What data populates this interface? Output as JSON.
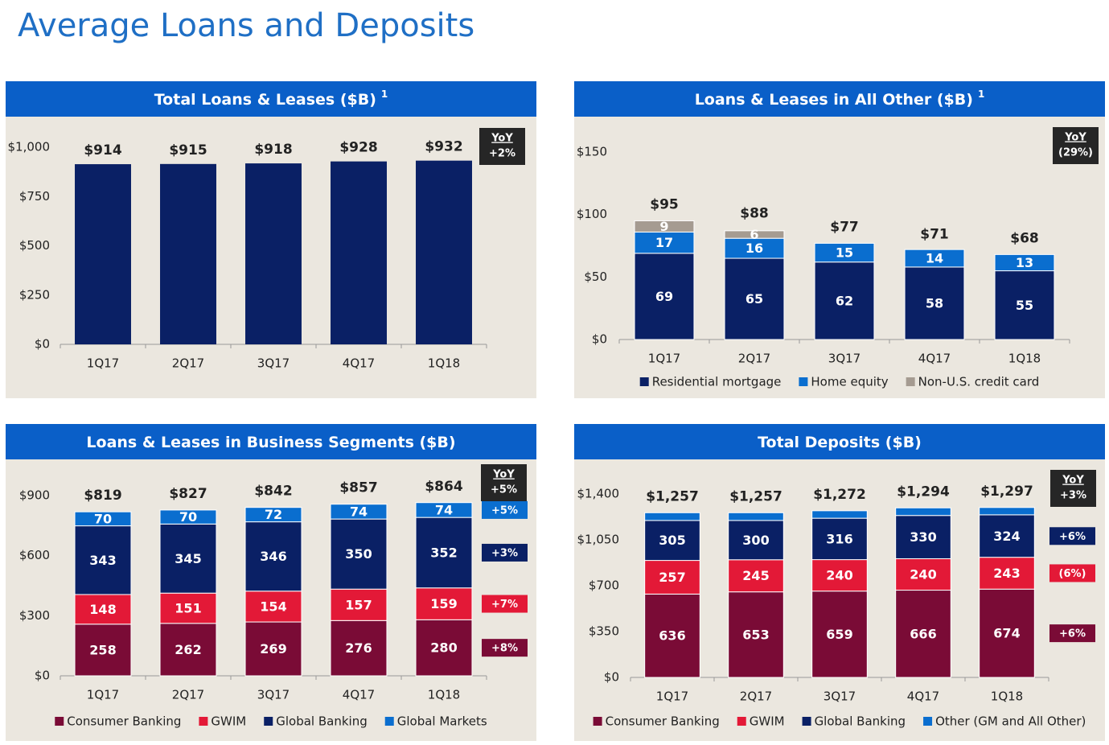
{
  "page_title": "Average Loans and Deposits",
  "chart_data": [
    {
      "type": "bar",
      "title": "Total Loans & Leases ($B)",
      "footnote": "1",
      "categories": [
        "1Q17",
        "2Q17",
        "3Q17",
        "4Q17",
        "1Q18"
      ],
      "values": [
        914,
        915,
        918,
        928,
        932
      ],
      "value_labels": [
        "$914",
        "$915",
        "$918",
        "$928",
        "$932"
      ],
      "color": "#0a2065",
      "ylim": [
        0,
        1000
      ],
      "yticks": [
        {
          "value": 0,
          "label": "$0"
        },
        {
          "value": 250,
          "label": "$250"
        },
        {
          "value": 500,
          "label": "$500"
        },
        {
          "value": 750,
          "label": "$750"
        },
        {
          "value": 1000,
          "label": "$1,000"
        }
      ],
      "yoy_label": "YoY",
      "yoy": "+2%"
    },
    {
      "type": "stacked_bar",
      "title": "Loans & Leases in All Other ($B)",
      "footnote": "1",
      "categories": [
        "1Q17",
        "2Q17",
        "3Q17",
        "4Q17",
        "1Q18"
      ],
      "series": [
        {
          "name": "Residential mortgage",
          "color": "#0a2065",
          "values": [
            69,
            65,
            62,
            58,
            55
          ]
        },
        {
          "name": "Home equity",
          "color": "#0a6ecf",
          "values": [
            17,
            16,
            15,
            14,
            13
          ]
        },
        {
          "name": "Non-U.S. credit card",
          "color": "#a59b91",
          "values": [
            9,
            6,
            null,
            null,
            null
          ]
        }
      ],
      "totals": [
        95,
        88,
        77,
        71,
        68
      ],
      "total_labels": [
        "$95",
        "$88",
        "$77",
        "$71",
        "$68"
      ],
      "ylim": [
        0,
        150
      ],
      "yticks": [
        {
          "value": 0,
          "label": "$0"
        },
        {
          "value": 50,
          "label": "$50"
        },
        {
          "value": 100,
          "label": "$100"
        },
        {
          "value": 150,
          "label": "$150"
        }
      ],
      "yoy_label": "YoY",
      "yoy": "(29%)"
    },
    {
      "type": "stacked_bar",
      "title": "Loans & Leases in Business Segments ($B)",
      "categories": [
        "1Q17",
        "2Q17",
        "3Q17",
        "4Q17",
        "1Q18"
      ],
      "series": [
        {
          "name": "Consumer Banking",
          "color": "#7a0b36",
          "values": [
            258,
            262,
            269,
            276,
            280
          ],
          "yoy": "+8%"
        },
        {
          "name": "GWIM",
          "color": "#e31937",
          "values": [
            148,
            151,
            154,
            157,
            159
          ],
          "yoy": "+7%"
        },
        {
          "name": "Global Banking",
          "color": "#0a2065",
          "values": [
            343,
            345,
            346,
            350,
            352
          ],
          "yoy": "+3%"
        },
        {
          "name": "Global Markets",
          "color": "#0a6ecf",
          "values": [
            70,
            70,
            72,
            74,
            74
          ],
          "yoy": "+5%"
        }
      ],
      "totals": [
        819,
        827,
        842,
        857,
        864
      ],
      "total_labels": [
        "$819",
        "$827",
        "$842",
        "$857",
        "$864"
      ],
      "ylim": [
        0,
        900
      ],
      "yticks": [
        {
          "value": 0,
          "label": "$0"
        },
        {
          "value": 300,
          "label": "$300"
        },
        {
          "value": 600,
          "label": "$600"
        },
        {
          "value": 900,
          "label": "$900"
        }
      ],
      "yoy_label": "YoY",
      "yoy": "+5%"
    },
    {
      "type": "stacked_bar",
      "title": "Total Deposits ($B)",
      "categories": [
        "1Q17",
        "2Q17",
        "3Q17",
        "4Q17",
        "1Q18"
      ],
      "series": [
        {
          "name": "Consumer Banking",
          "color": "#7a0b36",
          "values": [
            636,
            653,
            659,
            666,
            674
          ],
          "yoy": "+6%"
        },
        {
          "name": "GWIM",
          "color": "#e31937",
          "values": [
            257,
            245,
            240,
            240,
            243
          ],
          "yoy": "(6%)"
        },
        {
          "name": "Global Banking",
          "color": "#0a2065",
          "values": [
            305,
            300,
            316,
            330,
            324
          ],
          "yoy": "+6%"
        },
        {
          "name": "Other (GM and All Other)",
          "color": "#0a6ecf",
          "values": [
            59,
            59,
            57,
            58,
            56
          ],
          "data_labels": false
        }
      ],
      "totals": [
        1257,
        1257,
        1272,
        1294,
        1297
      ],
      "total_labels": [
        "$1,257",
        "$1,257",
        "$1,272",
        "$1,294",
        "$1,297"
      ],
      "ylim": [
        0,
        1400
      ],
      "yticks": [
        {
          "value": 0,
          "label": "$0"
        },
        {
          "value": 350,
          "label": "$350"
        },
        {
          "value": 700,
          "label": "$700"
        },
        {
          "value": 1050,
          "label": "$1,050"
        },
        {
          "value": 1400,
          "label": "$1,400"
        }
      ],
      "yoy_label": "YoY",
      "yoy": "+3%"
    }
  ]
}
